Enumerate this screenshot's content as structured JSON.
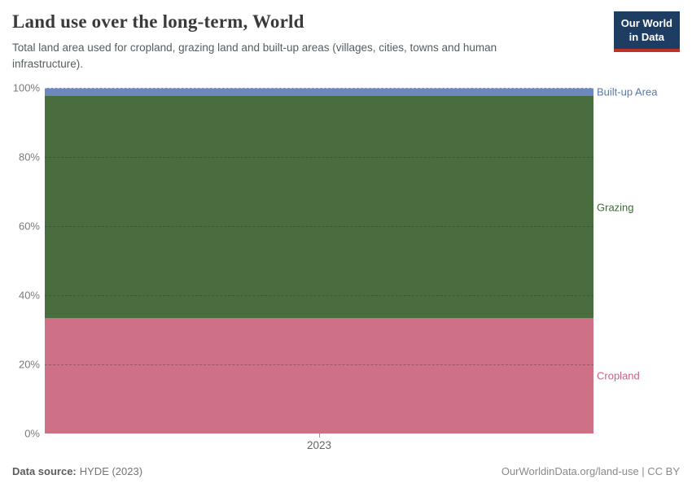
{
  "header": {
    "title": "Land use over the long-term, World",
    "subtitle": "Total land area used for cropland, grazing land and built-up areas (villages, cities, towns and human infrastructure)."
  },
  "logo": {
    "line1": "Our World",
    "line2": "in Data",
    "bg_color": "#1d3d63",
    "accent_color": "#bd3226"
  },
  "chart_data": {
    "type": "area",
    "stacked": true,
    "units": "percent of total land area",
    "x": [
      "2023"
    ],
    "series": [
      {
        "name": "Cropland",
        "value_pct": 33.4,
        "color": "#ce7186",
        "label_color": "#c9617f"
      },
      {
        "name": "Grazing",
        "value_pct": 64.2,
        "color": "#4a6d3f",
        "label_color": "#3b6a35"
      },
      {
        "name": "Built-up Area",
        "value_pct": 2.4,
        "color": "#6c88bd",
        "label_color": "#5878ab"
      }
    ],
    "ylim": [
      0,
      100
    ],
    "ytick_labels": [
      "100%",
      "80%",
      "60%",
      "40%",
      "20%",
      "0%"
    ],
    "xtick_labels": [
      "2023"
    ],
    "grid": "dashed horizontal, 20% intervals",
    "legend_position": "right edge entity labels"
  },
  "footer": {
    "source_label": "Data source:",
    "source_value": "HYDE (2023)",
    "credit": "OurWorldinData.org/land-use | CC BY"
  }
}
